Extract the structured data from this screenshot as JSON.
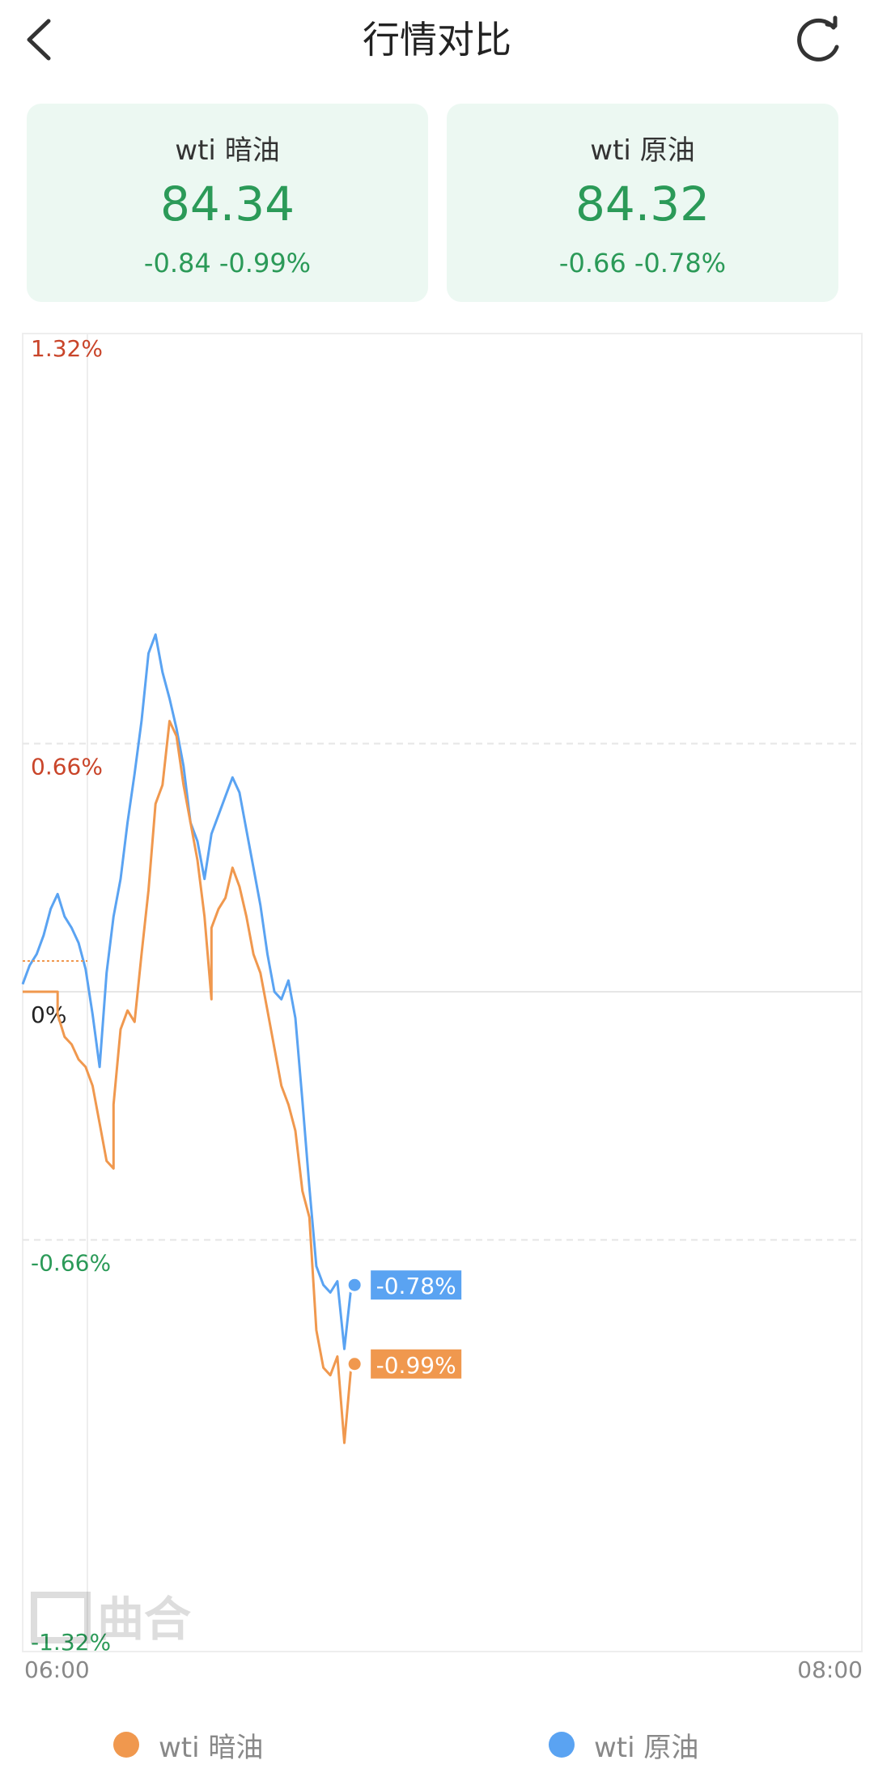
{
  "header": {
    "title": "行情对比",
    "back_icon": "chevron-left-icon",
    "refresh_icon": "refresh-icon"
  },
  "cards": [
    {
      "name": "wti 暗油",
      "price": "84.34",
      "change": "-0.84 -0.99%"
    },
    {
      "name": "wti 原油",
      "price": "84.32",
      "change": "-0.66 -0.78%"
    }
  ],
  "colors": {
    "up": "#c9452a",
    "down": "#2b9a58",
    "neutral": "#222222",
    "series_a": "#f0984e",
    "series_b": "#5aa3f2"
  },
  "watermark": "曲合",
  "chart_data": {
    "type": "line",
    "x_range": [
      "06:00",
      "08:00"
    ],
    "y_ticks": [
      "1.32%",
      "0.66%",
      "0%",
      "-0.66%",
      "-1.32%"
    ],
    "y_tick_values": [
      1.32,
      0.66,
      0,
      -0.66,
      -1.32
    ],
    "ylim": [
      -1.32,
      1.32
    ],
    "x_tick_labels": [
      "06:00",
      "08:00"
    ],
    "grid": true,
    "legend_position": "bottom",
    "series": [
      {
        "name": "wti 暗油",
        "color": "#f0984e",
        "end_label": "-0.99%",
        "end_value": -0.99,
        "points": [
          [
            "06:00",
            0
          ],
          [
            "06:05",
            0
          ],
          [
            "06:05",
            -0.06
          ],
          [
            "06:06",
            -0.12
          ],
          [
            "06:07",
            -0.14
          ],
          [
            "06:08",
            -0.18
          ],
          [
            "06:09",
            -0.2
          ],
          [
            "06:10",
            -0.25
          ],
          [
            "06:11",
            -0.35
          ],
          [
            "06:12",
            -0.45
          ],
          [
            "06:13",
            -0.47
          ],
          [
            "06:13",
            -0.3
          ],
          [
            "06:14",
            -0.1
          ],
          [
            "06:15",
            -0.05
          ],
          [
            "06:16",
            -0.08
          ],
          [
            "06:17",
            0.1
          ],
          [
            "06:18",
            0.27
          ],
          [
            "06:19",
            0.5
          ],
          [
            "06:20",
            0.55
          ],
          [
            "06:21",
            0.72
          ],
          [
            "06:22",
            0.68
          ],
          [
            "06:23",
            0.55
          ],
          [
            "06:24",
            0.45
          ],
          [
            "06:25",
            0.35
          ],
          [
            "06:26",
            0.2
          ],
          [
            "06:27",
            -0.02
          ],
          [
            "06:27",
            0.17
          ],
          [
            "06:28",
            0.22
          ],
          [
            "06:29",
            0.25
          ],
          [
            "06:30",
            0.33
          ],
          [
            "06:31",
            0.28
          ],
          [
            "06:32",
            0.2
          ],
          [
            "06:33",
            0.1
          ],
          [
            "06:34",
            0.05
          ],
          [
            "06:35",
            -0.05
          ],
          [
            "06:36",
            -0.15
          ],
          [
            "06:37",
            -0.25
          ],
          [
            "06:38",
            -0.3
          ],
          [
            "06:39",
            -0.37
          ],
          [
            "06:40",
            -0.53
          ],
          [
            "06:41",
            -0.6
          ],
          [
            "06:42",
            -0.9
          ],
          [
            "06:43",
            -1.0
          ],
          [
            "06:44",
            -1.02
          ],
          [
            "06:45",
            -0.97
          ],
          [
            "06:46",
            -1.2
          ],
          [
            "06:47",
            -0.99
          ]
        ]
      },
      {
        "name": "wti 原油",
        "color": "#5aa3f2",
        "end_label": "-0.78%",
        "end_value": -0.78,
        "points": [
          [
            "06:00",
            0.02
          ],
          [
            "06:01",
            0.07
          ],
          [
            "06:02",
            0.1
          ],
          [
            "06:03",
            0.15
          ],
          [
            "06:04",
            0.22
          ],
          [
            "06:05",
            0.26
          ],
          [
            "06:06",
            0.2
          ],
          [
            "06:07",
            0.17
          ],
          [
            "06:08",
            0.13
          ],
          [
            "06:09",
            0.06
          ],
          [
            "06:10",
            -0.06
          ],
          [
            "06:11",
            -0.2
          ],
          [
            "06:12",
            0.05
          ],
          [
            "06:13",
            0.2
          ],
          [
            "06:14",
            0.3
          ],
          [
            "06:15",
            0.45
          ],
          [
            "06:16",
            0.58
          ],
          [
            "06:17",
            0.72
          ],
          [
            "06:18",
            0.9
          ],
          [
            "06:19",
            0.95
          ],
          [
            "06:20",
            0.85
          ],
          [
            "06:21",
            0.78
          ],
          [
            "06:22",
            0.7
          ],
          [
            "06:23",
            0.6
          ],
          [
            "06:24",
            0.45
          ],
          [
            "06:25",
            0.4
          ],
          [
            "06:26",
            0.3
          ],
          [
            "06:27",
            0.42
          ],
          [
            "06:28",
            0.47
          ],
          [
            "06:29",
            0.52
          ],
          [
            "06:30",
            0.57
          ],
          [
            "06:31",
            0.53
          ],
          [
            "06:32",
            0.43
          ],
          [
            "06:33",
            0.33
          ],
          [
            "06:34",
            0.23
          ],
          [
            "06:35",
            0.1
          ],
          [
            "06:36",
            0.0
          ],
          [
            "06:37",
            -0.02
          ],
          [
            "06:38",
            0.03
          ],
          [
            "06:39",
            -0.07
          ],
          [
            "06:40",
            -0.29
          ],
          [
            "06:41",
            -0.52
          ],
          [
            "06:42",
            -0.73
          ],
          [
            "06:43",
            -0.78
          ],
          [
            "06:44",
            -0.8
          ],
          [
            "06:45",
            -0.77
          ],
          [
            "06:46",
            -0.95
          ],
          [
            "06:47",
            -0.78
          ]
        ]
      }
    ]
  }
}
